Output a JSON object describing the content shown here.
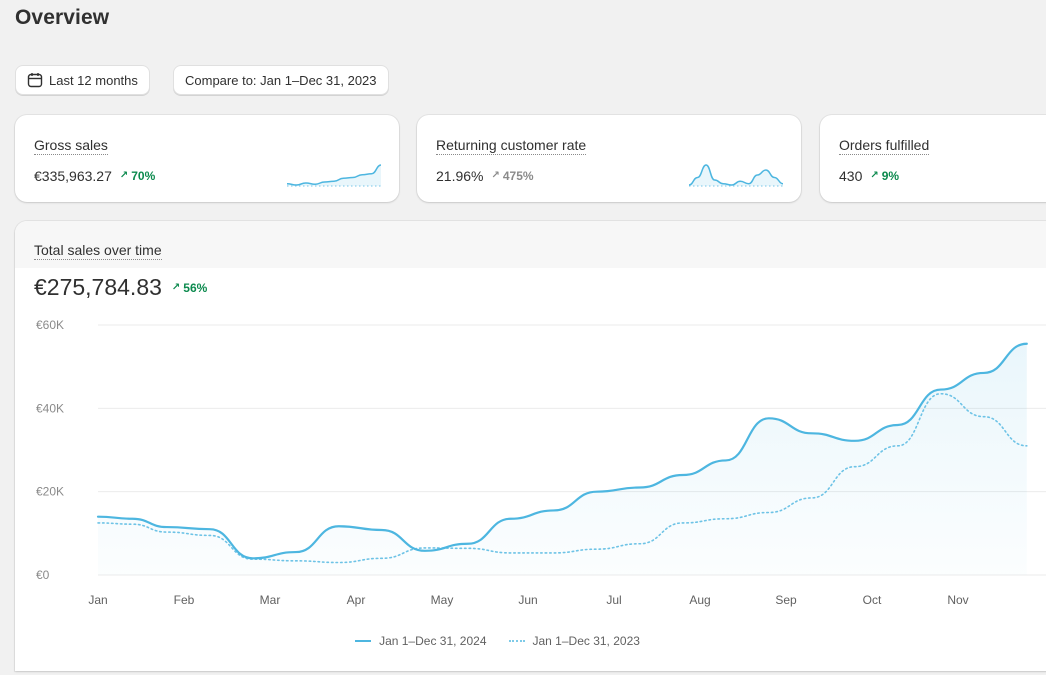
{
  "page": {
    "title": "Overview"
  },
  "controls": {
    "date_range_label": "Last 12 months",
    "compare_label": "Compare to: Jan 1–Dec 31, 2023"
  },
  "metrics": [
    {
      "label": "Gross sales",
      "value": "€335,963.27",
      "delta": "70%",
      "trend": "up"
    },
    {
      "label": "Returning customer rate",
      "value": "21.96%",
      "delta": "475%",
      "trend": "neutral"
    },
    {
      "label": "Orders fulfilled",
      "value": "430",
      "delta": "9%",
      "trend": "up"
    }
  ],
  "icons": {
    "calendar": "calendar-icon",
    "arrow": "arrow-up-right-icon"
  },
  "colors": {
    "accent": "#4db6e0",
    "positive": "#0c8a4e",
    "neutral": "#8a8a8a"
  },
  "chart_data": {
    "type": "line",
    "title": "Total sales over time",
    "total_value": "€275,784.83",
    "total_delta": "56%",
    "x": [
      "Jan",
      "Feb",
      "Mar",
      "Apr",
      "May",
      "Jun",
      "Jul",
      "Aug",
      "Sep",
      "Oct",
      "Nov"
    ],
    "y_ticks": [
      "€0",
      "€20K",
      "€40K",
      "€60K"
    ],
    "ylim": [
      0,
      60000
    ],
    "grid": true,
    "legend_position": "bottom-center",
    "series": [
      {
        "name": "Jan 1–Dec 31, 2024",
        "style": "solid",
        "x": [
          0,
          0.4,
          0.8,
          1.3,
          1.8,
          2.3,
          2.8,
          3.3,
          3.8,
          4.3,
          4.8,
          5.3,
          5.8,
          6.3,
          6.8,
          7.3,
          7.8,
          8.3,
          8.8,
          9.3,
          9.8,
          10.3,
          10.8
        ],
        "values": [
          14000,
          13500,
          11500,
          11000,
          4000,
          5500,
          11700,
          10800,
          5800,
          7500,
          13500,
          15500,
          20000,
          21000,
          24000,
          27500,
          37600,
          34000,
          32200,
          36000,
          44500,
          48500,
          55500
        ]
      },
      {
        "name": "Jan 1–Dec 31, 2023",
        "style": "dotted",
        "x": [
          0,
          0.4,
          0.8,
          1.3,
          1.8,
          2.3,
          2.8,
          3.3,
          3.8,
          4.3,
          4.8,
          5.3,
          5.8,
          6.3,
          6.8,
          7.3,
          7.8,
          8.3,
          8.8,
          9.3,
          9.8,
          10.3,
          10.8
        ],
        "values": [
          12500,
          12200,
          10300,
          9500,
          3800,
          3400,
          3000,
          4000,
          6500,
          6400,
          5300,
          5300,
          6200,
          7500,
          12500,
          13500,
          15000,
          18500,
          26000,
          31000,
          43500,
          38000,
          31000
        ]
      }
    ]
  },
  "sparklines": [
    {
      "values": [
        2,
        1.5,
        2.3,
        1.8,
        2.7,
        3,
        4.2,
        4.5,
        5.6,
        6,
        9.5
      ]
    },
    {
      "values": [
        1,
        4,
        9,
        3,
        1.5,
        1,
        2.5,
        1.5,
        5,
        7,
        4,
        1.5
      ]
    },
    {
      "values": []
    }
  ]
}
